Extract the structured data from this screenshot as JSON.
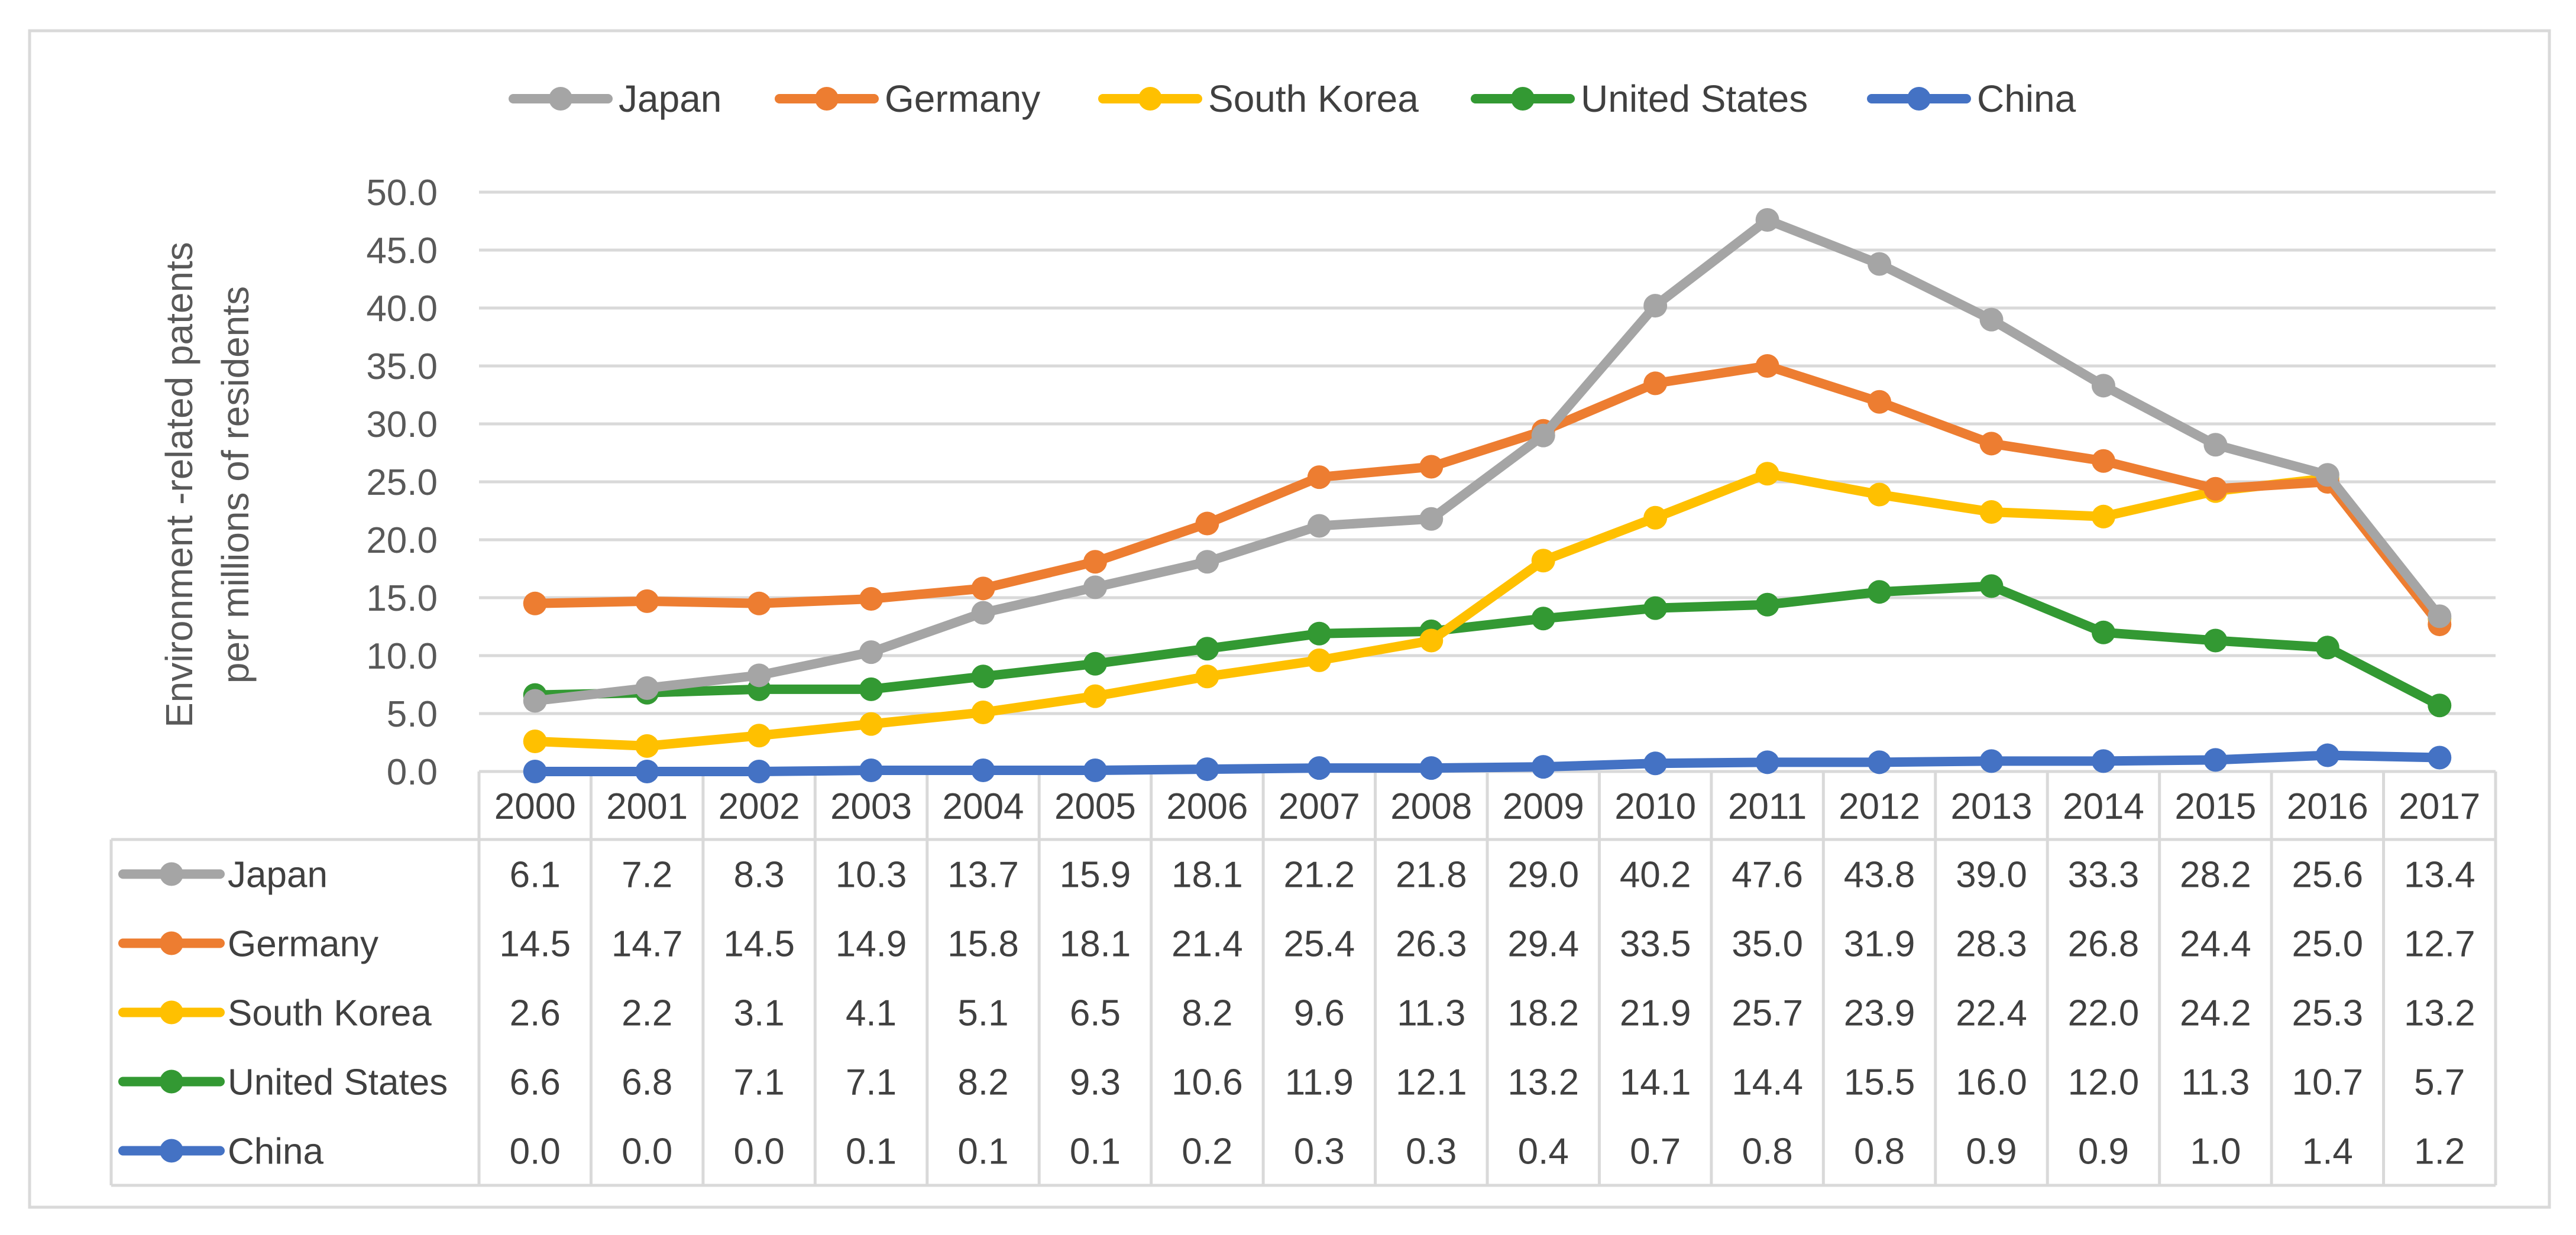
{
  "chart_data": {
    "type": "line",
    "title": "",
    "xlabel": "",
    "ylabel": [
      "Environment -related patents",
      "per millions of residents"
    ],
    "ylim": [
      0,
      50
    ],
    "ytick_step": 5,
    "yticks": [
      "0.0",
      "5.0",
      "10.0",
      "15.0",
      "20.0",
      "25.0",
      "30.0",
      "35.0",
      "40.0",
      "45.0",
      "50.0"
    ],
    "grid": true,
    "legend_position": "top",
    "categories": [
      "2000",
      "2001",
      "2002",
      "2003",
      "2004",
      "2005",
      "2006",
      "2007",
      "2008",
      "2009",
      "2010",
      "2011",
      "2012",
      "2013",
      "2014",
      "2015",
      "2016",
      "2017"
    ],
    "series": [
      {
        "name": "Japan",
        "color": "#a5a5a5",
        "values": [
          6.1,
          7.2,
          8.3,
          10.3,
          13.7,
          15.9,
          18.1,
          21.2,
          21.8,
          29.0,
          40.2,
          47.6,
          43.8,
          39.0,
          33.3,
          28.2,
          25.6,
          13.4
        ]
      },
      {
        "name": "Germany",
        "color": "#ed7d31",
        "values": [
          14.5,
          14.7,
          14.5,
          14.9,
          15.8,
          18.1,
          21.4,
          25.4,
          26.3,
          29.4,
          33.5,
          35.0,
          31.9,
          28.3,
          26.8,
          24.4,
          25.0,
          12.7
        ]
      },
      {
        "name": "South Korea",
        "color": "#ffc000",
        "values": [
          2.6,
          2.2,
          3.1,
          4.1,
          5.1,
          6.5,
          8.2,
          9.6,
          11.3,
          18.2,
          21.9,
          25.7,
          23.9,
          22.4,
          22.0,
          24.2,
          25.3,
          13.2
        ]
      },
      {
        "name": "United States",
        "color": "#339933",
        "values": [
          6.6,
          6.8,
          7.1,
          7.1,
          8.2,
          9.3,
          10.6,
          11.9,
          12.1,
          13.2,
          14.1,
          14.4,
          15.5,
          16.0,
          12.0,
          11.3,
          10.7,
          5.7
        ]
      },
      {
        "name": "China",
        "color": "#4472c4",
        "values": [
          0.0,
          0.0,
          0.0,
          0.1,
          0.1,
          0.1,
          0.2,
          0.3,
          0.3,
          0.4,
          0.7,
          0.8,
          0.8,
          0.9,
          0.9,
          1.0,
          1.4,
          1.2
        ]
      }
    ],
    "data_table": true
  }
}
